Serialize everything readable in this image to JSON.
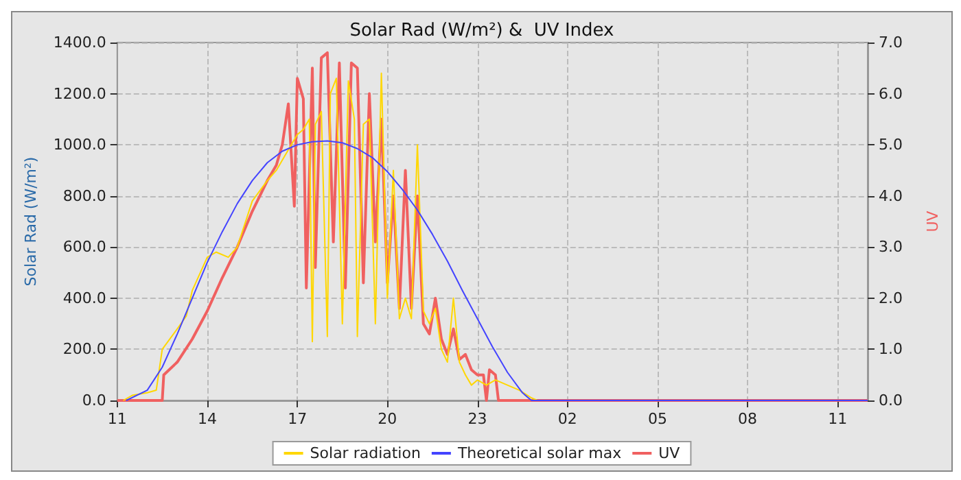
{
  "chart_data": {
    "type": "line",
    "title": "Solar Rad (W/m²) &  UV Index",
    "ylabel": "Solar Rad (W/m²)",
    "y2label": "UV",
    "xlim": [
      "--06-01T11:00",
      "--06-02T12:00"
    ],
    "xticks": [
      {
        "value": "--06-01T11:00",
        "label": "11"
      },
      {
        "value": "--06-01T14:00",
        "label": "14"
      },
      {
        "value": "--06-01T17:00",
        "label": "17"
      },
      {
        "value": "--06-01T20:00",
        "label": "20"
      },
      {
        "value": "--06-01T23:00",
        "label": "23"
      },
      {
        "value": "--06-02T02:00",
        "label": "02"
      },
      {
        "value": "--06-02T05:00",
        "label": "05"
      },
      {
        "value": "--06-02T08:00",
        "label": "08"
      },
      {
        "value": "--06-02T11:00",
        "label": "11"
      }
    ],
    "ylim": [
      0,
      1400
    ],
    "yticks": [
      {
        "value": 0,
        "label": "0.0"
      },
      {
        "value": 200,
        "label": "200.0"
      },
      {
        "value": 400,
        "label": "400.0"
      },
      {
        "value": 600,
        "label": "600.0"
      },
      {
        "value": 800,
        "label": "800.0"
      },
      {
        "value": 1000,
        "label": "1000.0"
      },
      {
        "value": 1200,
        "label": "1200.0"
      },
      {
        "value": 1400,
        "label": "1400.0"
      }
    ],
    "y2lim": [
      0,
      7
    ],
    "y2ticks": [
      {
        "value": 0,
        "label": "0.0"
      },
      {
        "value": 1,
        "label": "1.0"
      },
      {
        "value": 2,
        "label": "2.0"
      },
      {
        "value": 3,
        "label": "3.0"
      },
      {
        "value": 4,
        "label": "4.0"
      },
      {
        "value": 5,
        "label": "5.0"
      },
      {
        "value": 6,
        "label": "6.0"
      },
      {
        "value": 7,
        "label": "7.0"
      }
    ],
    "grid": true,
    "legend": "bottom",
    "marker": "none",
    "series": [
      {
        "name": "Solar radiation",
        "color": "#ffd700",
        "x": [
          "--06-01T11:12",
          "--06-01T11:30",
          "--06-01T12:00",
          "--06-01T12:18",
          "--06-01T12:30",
          "--06-01T13:00",
          "--06-01T13:18",
          "--06-01T13:30",
          "--06-01T14:00",
          "--06-01T14:18",
          "--06-01T14:42",
          "--06-01T15:00",
          "--06-01T15:30",
          "--06-01T16:00",
          "--06-01T16:18",
          "--06-01T16:42",
          "--06-01T17:00",
          "--06-01T17:12",
          "--06-01T17:24",
          "--06-01T17:30",
          "--06-01T17:36",
          "--06-01T17:48",
          "--06-01T18:00",
          "--06-01T18:06",
          "--06-01T18:18",
          "--06-01T18:30",
          "--06-01T18:42",
          "--06-01T18:54",
          "--06-01T19:00",
          "--06-01T19:12",
          "--06-01T19:24",
          "--06-01T19:36",
          "--06-01T19:48",
          "--06-01T20:00",
          "--06-01T20:12",
          "--06-01T20:24",
          "--06-01T20:36",
          "--06-01T20:48",
          "--06-01T21:00",
          "--06-01T21:12",
          "--06-01T21:24",
          "--06-01T21:36",
          "--06-01T21:48",
          "--06-01T22:00",
          "--06-01T22:12",
          "--06-01T22:24",
          "--06-01T22:36",
          "--06-01T22:48",
          "--06-01T23:00",
          "--06-01T23:18",
          "--06-01T23:36",
          "--06-02T00:00",
          "--06-02T00:24",
          "--06-02T00:48",
          "--06-02T01:00",
          "--06-02T12:00"
        ],
        "values": [
          0,
          20,
          30,
          40,
          200,
          280,
          330,
          430,
          560,
          580,
          560,
          600,
          780,
          860,
          900,
          980,
          1040,
          1060,
          1100,
          230,
          1080,
          1130,
          250,
          1200,
          1260,
          300,
          1250,
          1100,
          250,
          1080,
          1100,
          300,
          1280,
          400,
          900,
          320,
          400,
          320,
          1000,
          350,
          300,
          360,
          200,
          150,
          400,
          150,
          100,
          60,
          80,
          60,
          80,
          60,
          40,
          10,
          0,
          0
        ]
      },
      {
        "name": "Theoretical solar max",
        "color": "#4444ff",
        "x": [
          "--06-01T11:18",
          "--06-01T12:00",
          "--06-01T12:30",
          "--06-01T13:00",
          "--06-01T13:30",
          "--06-01T14:00",
          "--06-01T14:30",
          "--06-01T15:00",
          "--06-01T15:30",
          "--06-01T16:00",
          "--06-01T16:30",
          "--06-01T17:00",
          "--06-01T17:30",
          "--06-01T18:00",
          "--06-01T18:30",
          "--06-01T19:00",
          "--06-01T19:30",
          "--06-01T20:00",
          "--06-01T20:30",
          "--06-01T21:00",
          "--06-01T21:30",
          "--06-01T22:00",
          "--06-01T22:30",
          "--06-01T23:00",
          "--06-01T23:30",
          "--06-02T00:00",
          "--06-02T00:30",
          "--06-02T00:48",
          "--06-02T12:00"
        ],
        "values": [
          0,
          40,
          130,
          260,
          400,
          540,
          660,
          770,
          860,
          930,
          975,
          1000,
          1012,
          1015,
          1008,
          985,
          950,
          895,
          825,
          745,
          650,
          545,
          430,
          320,
          210,
          110,
          30,
          0,
          0
        ]
      },
      {
        "name": "UV",
        "color": "#f06060",
        "axis": "y2",
        "x": [
          "--06-01T11:00",
          "--06-01T12:30",
          "--06-01T12:33",
          "--06-01T13:00",
          "--06-01T13:30",
          "--06-01T14:00",
          "--06-01T14:30",
          "--06-01T15:00",
          "--06-01T15:30",
          "--06-01T16:00",
          "--06-01T16:18",
          "--06-01T16:30",
          "--06-01T16:42",
          "--06-01T16:54",
          "--06-01T17:00",
          "--06-01T17:12",
          "--06-01T17:18",
          "--06-01T17:30",
          "--06-01T17:36",
          "--06-01T17:48",
          "--06-01T18:00",
          "--06-01T18:12",
          "--06-01T18:24",
          "--06-01T18:36",
          "--06-01T18:48",
          "--06-01T19:00",
          "--06-01T19:12",
          "--06-01T19:24",
          "--06-01T19:36",
          "--06-01T19:48",
          "--06-01T20:00",
          "--06-01T20:12",
          "--06-01T20:24",
          "--06-01T20:36",
          "--06-01T20:48",
          "--06-01T21:00",
          "--06-01T21:12",
          "--06-01T21:24",
          "--06-01T21:36",
          "--06-01T21:48",
          "--06-01T22:00",
          "--06-01T22:12",
          "--06-01T22:24",
          "--06-01T22:36",
          "--06-01T22:48",
          "--06-01T23:00",
          "--06-01T23:12",
          "--06-01T23:18",
          "--06-01T23:24",
          "--06-01T23:36",
          "--06-01T23:42",
          "--06-02T12:00"
        ],
        "values": [
          0,
          0,
          0.5,
          0.75,
          1.2,
          1.75,
          2.4,
          3.0,
          3.7,
          4.3,
          4.6,
          5.0,
          5.8,
          3.8,
          6.3,
          5.9,
          2.2,
          6.5,
          2.6,
          6.7,
          6.8,
          3.1,
          6.6,
          2.2,
          6.6,
          6.5,
          2.3,
          6.0,
          3.1,
          5.5,
          2.3,
          4.0,
          1.8,
          4.5,
          1.8,
          4.0,
          1.5,
          1.3,
          2.0,
          1.2,
          0.9,
          1.4,
          0.8,
          0.9,
          0.6,
          0.5,
          0.5,
          0,
          0.6,
          0.5,
          0,
          0
        ]
      }
    ]
  }
}
